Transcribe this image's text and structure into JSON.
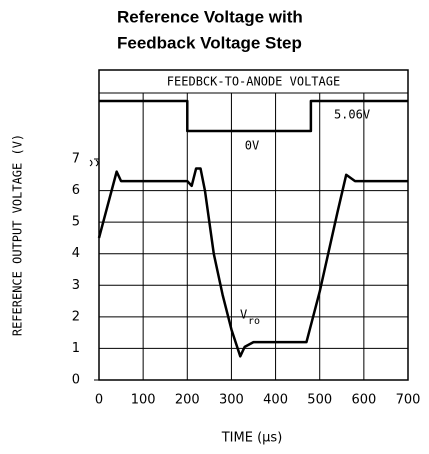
{
  "chart_data": {
    "type": "line",
    "title": [
      "Reference Voltage with",
      "Feedback Voltage Step"
    ],
    "xlabel": "TIME (μs)",
    "ylabel": "REFERENCE OUTPUT VOLTAGE (V)",
    "xlim": [
      0,
      700
    ],
    "xticks": [
      0,
      100,
      200,
      300,
      400,
      500,
      600,
      700
    ],
    "ylim": [
      0,
      7
    ],
    "yticks": [
      0,
      1,
      2,
      3,
      4,
      5,
      6,
      7
    ],
    "y2lim": [
      0,
      5.06
    ],
    "grid": true,
    "series": [
      {
        "name": "V",
        "name_sub": "ro",
        "color": "#000000",
        "x": [
          0,
          40,
          50,
          200,
          210,
          220,
          230,
          240,
          260,
          280,
          300,
          320,
          330,
          350,
          470,
          500,
          540,
          560,
          580,
          700
        ],
        "values": [
          4.5,
          6.6,
          6.3,
          6.3,
          6.15,
          6.7,
          6.7,
          6.0,
          4.0,
          2.7,
          1.6,
          0.75,
          1.05,
          1.2,
          1.2,
          2.8,
          5.3,
          6.5,
          6.3,
          6.3
        ]
      },
      {
        "name": "FEEDBCK-TO-ANODE VOLTAGE",
        "color": "#000000",
        "axis": "y2",
        "x": [
          0,
          200,
          200,
          480,
          480,
          700
        ],
        "values": [
          5.06,
          5.06,
          0,
          0,
          5.06,
          5.06
        ]
      }
    ],
    "annotations": [
      "5.06V",
      "0V"
    ]
  }
}
